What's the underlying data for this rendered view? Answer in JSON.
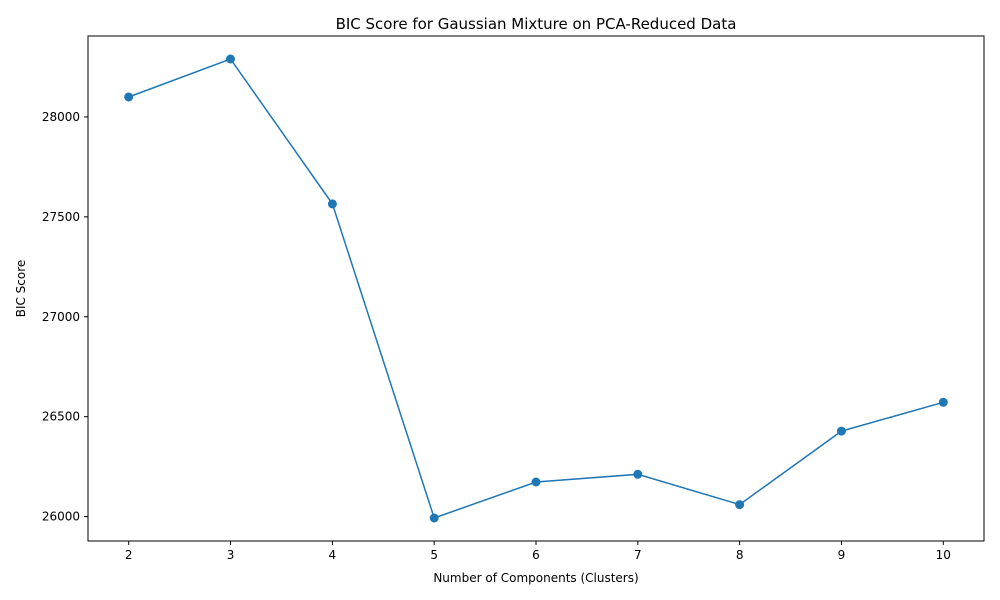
{
  "chart_data": {
    "type": "line",
    "title": "BIC Score for Gaussian Mixture on PCA-Reduced Data",
    "xlabel": "Number of Components (Clusters)",
    "ylabel": "BIC Score",
    "x": [
      2,
      3,
      4,
      5,
      6,
      7,
      8,
      9,
      10
    ],
    "series": [
      {
        "values": [
          28100,
          28290,
          27565,
          25993,
          26173,
          26212,
          26060,
          26428,
          26572
        ],
        "color": "#1f77b4",
        "marker": "circle"
      }
    ],
    "xticks": [
      2,
      3,
      4,
      5,
      6,
      7,
      8,
      9,
      10
    ],
    "yticks": [
      26000,
      26500,
      27000,
      27500,
      28000
    ],
    "xlim": [
      1.6,
      10.4
    ],
    "ylim": [
      25878,
      28405
    ],
    "grid": false,
    "legend": false
  }
}
